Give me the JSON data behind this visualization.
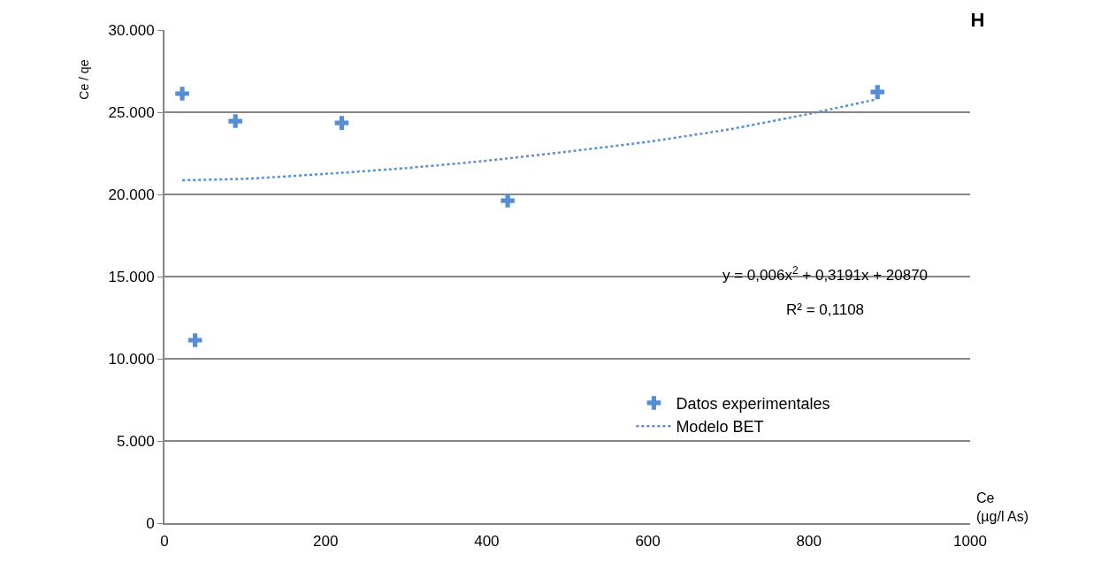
{
  "chart_data": {
    "type": "scatter",
    "title": "H",
    "xlabel": "Ce\n(µg/l As)",
    "ylabel": "Ce / qe",
    "xlim": [
      0,
      1000
    ],
    "xticks": [
      0,
      200,
      400,
      600,
      800,
      1000
    ],
    "ylim": [
      0,
      30000
    ],
    "yticks": [
      0,
      {
        "value": 5000,
        "label": "5.000"
      },
      {
        "value": 10000,
        "label": "10.000"
      },
      {
        "value": 15000,
        "label": "15.000"
      },
      {
        "value": 20000,
        "label": "20.000"
      },
      {
        "value": 25000,
        "label": "25.000"
      },
      {
        "value": 30000,
        "label": "30.000"
      }
    ],
    "grid": "y",
    "legend": "bottom right",
    "marker": "cross",
    "series": [
      {
        "name": "Datos experimentales",
        "color": "#558ed5",
        "x": [
          22,
          38,
          88,
          220,
          426,
          885
        ],
        "values": [
          26130,
          11130,
          24460,
          24350,
          19620,
          26230
        ]
      },
      {
        "name": "Modelo BET",
        "type": "line",
        "marker": "none",
        "line_style": "dotted",
        "color": "#558ed5",
        "x": [
          22,
          100,
          200,
          300,
          400,
          500,
          600,
          700,
          800,
          885
        ],
        "values": [
          20860,
          20950,
          21250,
          21600,
          22050,
          22600,
          23200,
          23950,
          24900,
          25800
        ]
      }
    ],
    "annotations": [
      "y = 0,006x$^{2}$ + 0,3191x + 20870",
      "R² = 0,1108"
    ]
  }
}
